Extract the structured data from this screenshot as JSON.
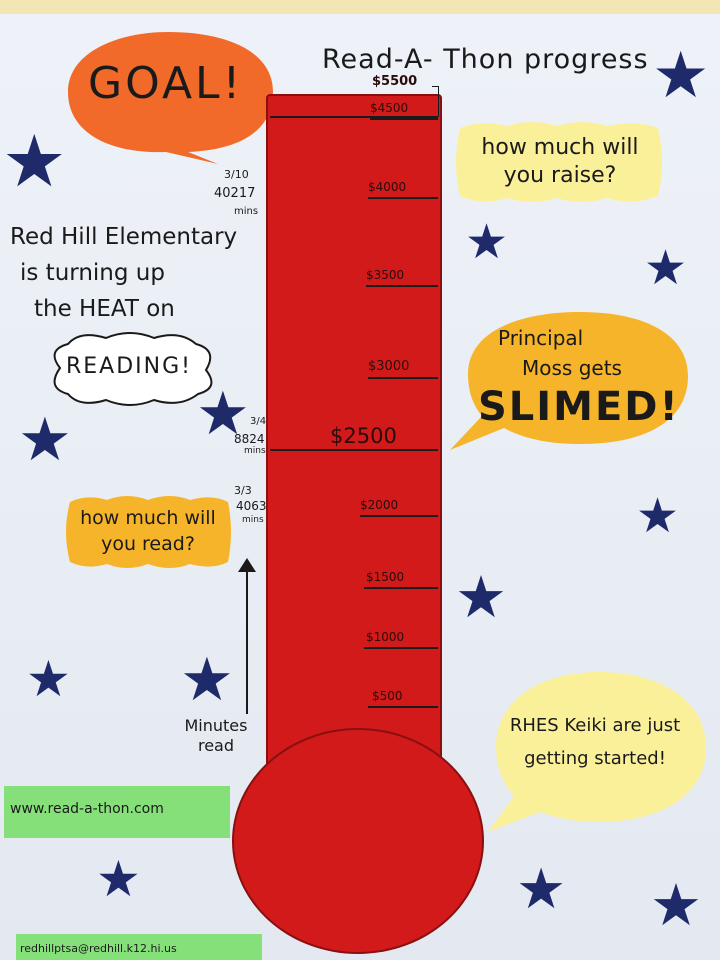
{
  "title": "Read-A- Thon progress",
  "goal_bubble": "GOAL!",
  "raise_bubble": "how much will you raise?",
  "read_bubble": "how much will you read?",
  "slime_bubble": {
    "line1": "Principal",
    "line2": "Moss gets",
    "line3": "SLIMED!"
  },
  "keiki_bubble": "RHES Keiki are just getting started!",
  "school_text": {
    "line1": "Red Hill Elementary",
    "line2": "is turning up",
    "line3": "the HEAT on"
  },
  "reading_cloud": "READING!",
  "axis_label": "Minutes read",
  "website": "www.read-a-thon.com",
  "email": "redhillptsa@redhill.k12.hi.us",
  "goal_amount": "$5500",
  "thermometer_ticks": [
    "$4500",
    "$4000",
    "$3500",
    "$3000",
    "$2500",
    "$2000",
    "$1500",
    "$1000",
    "$500"
  ],
  "milestones": [
    {
      "date": "3/10",
      "minutes": "40217",
      "unit": "mins"
    },
    {
      "date": "3/4",
      "minutes": "8824",
      "unit": "mins"
    },
    {
      "date": "3/3",
      "minutes": "4063",
      "unit": "mins"
    }
  ],
  "colors": {
    "mercury": "#d21a1a",
    "orange": "#f26a2a",
    "yellow": "#f6b42a",
    "pale_yellow": "#fbf09a",
    "green": "#86e07a",
    "star": "#1f2a6b"
  }
}
